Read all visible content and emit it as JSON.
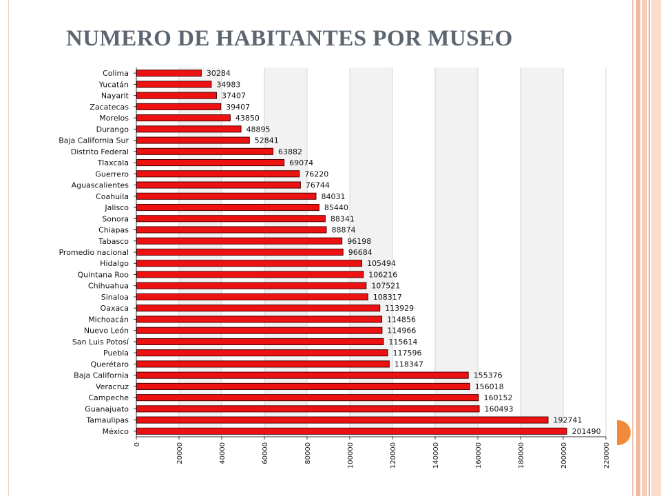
{
  "slide": {
    "title": "NUMERO DE HABITANTES POR MUSEO"
  },
  "colors": {
    "bar": "#ee1111",
    "bar_edge": "#4a0000",
    "band": "#f2f2f2",
    "title": "#5d6670",
    "accent": "#f28a3c"
  },
  "chart_data": {
    "type": "bar",
    "orientation": "horizontal",
    "categories": [
      "Colima",
      "Yucatán",
      "Nayarit",
      "Zacatecas",
      "Morelos",
      "Durango",
      "Baja California Sur",
      "Distrito Federal",
      "Tlaxcala",
      "Guerrero",
      "Aguascalientes",
      "Coahuila",
      "Jalisco",
      "Sonora",
      "Chiapas",
      "Tabasco",
      "Promedio nacional",
      "Hidalgo",
      "Quintana Roo",
      "Chihuahua",
      "Sinaloa",
      "Oaxaca",
      "Michoacán",
      "Nuevo León",
      "San Luis Potosí",
      "Puebla",
      "Querétaro",
      "Baja California",
      "Veracruz",
      "Campeche",
      "Guanajuato",
      "Tamaulipas",
      "México"
    ],
    "values": [
      30284,
      34983,
      37407,
      39407,
      43850,
      48895,
      52841,
      63882,
      69074,
      76220,
      76744,
      84031,
      85440,
      88341,
      88874,
      96198,
      96684,
      105494,
      106216,
      107521,
      108317,
      113929,
      114856,
      114966,
      115614,
      117596,
      118347,
      155376,
      156018,
      160152,
      160493,
      192741,
      201490
    ],
    "value_labels": [
      "30284",
      "34983",
      "37407",
      "39407",
      "43850",
      "48895",
      "52841",
      "63882",
      "69074",
      "76220",
      "76744",
      "84031",
      "85440",
      "88341",
      "88874",
      "96198",
      "96684",
      "105494",
      "106216",
      "107521",
      "108317",
      "113929",
      "114856",
      "114966",
      "115614",
      "117596",
      "118347",
      "155376",
      "156018",
      "160152",
      "160493",
      "192741",
      "201490"
    ],
    "ticks": [
      0,
      20000,
      40000,
      60000,
      80000,
      100000,
      120000,
      140000,
      160000,
      180000,
      200000,
      220000
    ],
    "tick_labels": [
      "0",
      "20000",
      "40000",
      "60000",
      "80000",
      "100000",
      "120000",
      "140000",
      "160000",
      "180000",
      "200000",
      "220000"
    ],
    "xlim": [
      0,
      220000
    ],
    "grid": true,
    "alternating_bands": true,
    "title": "",
    "xlabel": "",
    "ylabel": ""
  }
}
